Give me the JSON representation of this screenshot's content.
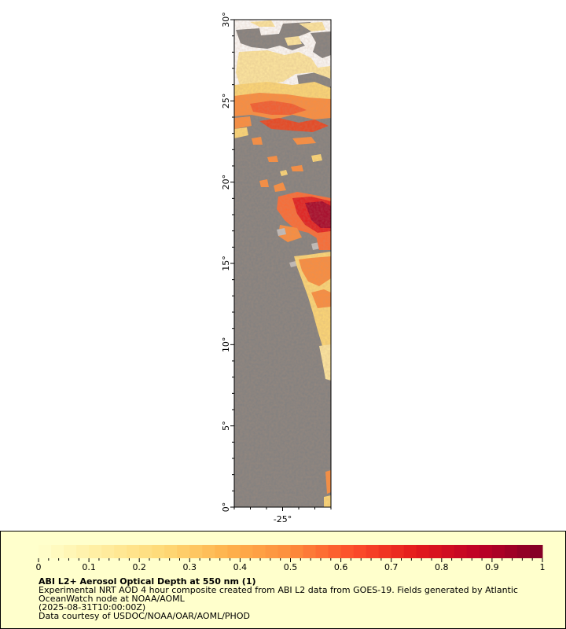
{
  "map": {
    "lat_ticks": [
      {
        "value": 0,
        "label": "0°"
      },
      {
        "value": 5,
        "label": "5°"
      },
      {
        "value": 10,
        "label": "10°"
      },
      {
        "value": 15,
        "label": "15°"
      },
      {
        "value": 20,
        "label": "20°"
      },
      {
        "value": 25,
        "label": "25°"
      },
      {
        "value": 30,
        "label": "30°"
      }
    ],
    "lon_ticks": [
      {
        "value": -25,
        "label": "-25°"
      }
    ],
    "colors": {
      "land": "#808080",
      "no_data": "#ffffff",
      "cloud": "#c0c0c0"
    }
  },
  "legend": {
    "title": "ABI L2+ Aerosol Optical Depth at 550 nm (1)",
    "description_line1": "Experimental NRT AOD 4 hour composite created from ABI L2 data from GOES-19. Fields generated by Atlantic",
    "description_line2": "OceanWatch node at NOAA/AOML",
    "time": "(2025-08-31T10:00:00Z)",
    "credit": "Data courtesy of USDOC/NOAA/OAR/AOML/PHOD",
    "colorbar_labels": [
      "0",
      "0.1",
      "0.2",
      "0.3",
      "0.4",
      "0.5",
      "0.6",
      "0.7",
      "0.8",
      "0.9",
      "1"
    ],
    "colorbar_colors": [
      "#ffffcc",
      "#ffeda0",
      "#fed976",
      "#feb24c",
      "#fd8d3c",
      "#fc4e2a",
      "#e31a1c",
      "#bd0026",
      "#800026"
    ]
  }
}
